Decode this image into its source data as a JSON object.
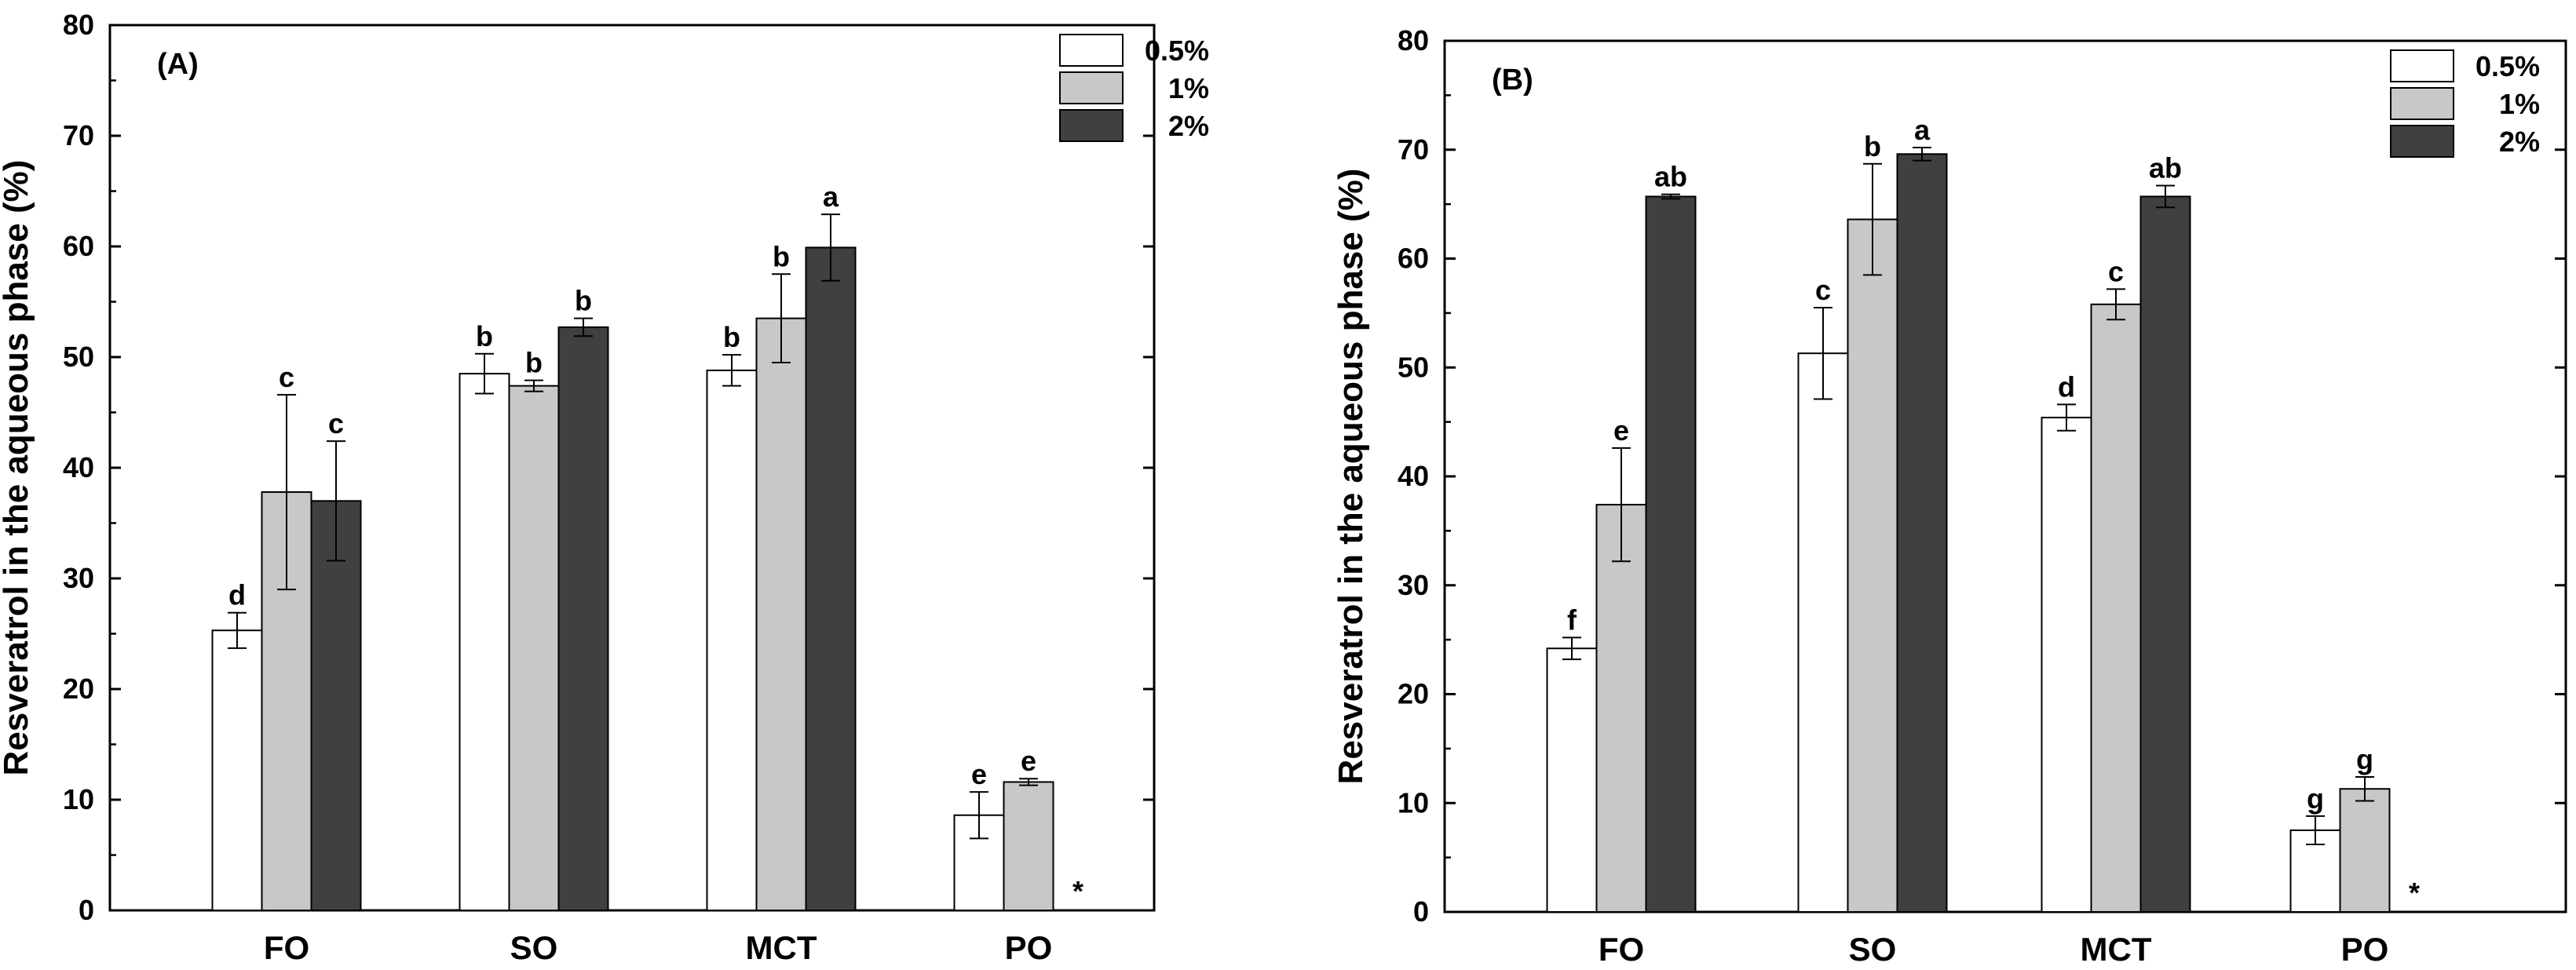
{
  "chart_data": [
    {
      "type": "bar",
      "panel_label": "(A)",
      "ylabel": "Resveratrol in the aqueous phase (%)",
      "xlabel": "",
      "ylim": [
        0,
        80
      ],
      "yticks": [
        "0",
        "10",
        "20",
        "30",
        "40",
        "50",
        "60",
        "70",
        "80"
      ],
      "categories": [
        "FO",
        "SO",
        "MCT",
        "PO"
      ],
      "legend_position": "top-right",
      "series": [
        {
          "name": "0.5%",
          "color": "#ffffff",
          "values": [
            25.3,
            48.5,
            48.8,
            8.6
          ],
          "errors": [
            1.6,
            1.8,
            1.4,
            2.1
          ],
          "letters": [
            "d",
            "b",
            "b",
            "e"
          ]
        },
        {
          "name": "1%",
          "color": "#c8c8c8",
          "values": [
            37.8,
            47.4,
            53.5,
            11.6
          ],
          "errors": [
            8.8,
            0.5,
            4.0,
            0.3
          ],
          "letters": [
            "c",
            "b",
            "b",
            "e"
          ]
        },
        {
          "name": "2%",
          "color": "#404040",
          "values": [
            37.0,
            52.7,
            59.9,
            null
          ],
          "errors": [
            5.4,
            0.8,
            3.0,
            null
          ],
          "letters": [
            "c",
            "b",
            "a",
            "*"
          ]
        }
      ]
    },
    {
      "type": "bar",
      "panel_label": "(B)",
      "ylabel": "Resveratrol in the aqueous phase (%)",
      "xlabel": "",
      "ylim": [
        0,
        80
      ],
      "yticks": [
        "0",
        "10",
        "20",
        "30",
        "40",
        "50",
        "60",
        "70",
        "80"
      ],
      "categories": [
        "FO",
        "SO",
        "MCT",
        "PO"
      ],
      "legend_position": "top-right",
      "series": [
        {
          "name": "0.5%",
          "color": "#ffffff",
          "values": [
            24.2,
            51.3,
            45.4,
            7.5
          ],
          "errors": [
            1.0,
            4.2,
            1.2,
            1.3
          ],
          "letters": [
            "f",
            "c",
            "d",
            "g"
          ]
        },
        {
          "name": "1%",
          "color": "#c8c8c8",
          "values": [
            37.4,
            63.6,
            55.8,
            11.3
          ],
          "errors": [
            5.2,
            5.1,
            1.4,
            1.1
          ],
          "letters": [
            "e",
            "b",
            "c",
            "g"
          ]
        },
        {
          "name": "2%",
          "color": "#404040",
          "values": [
            65.7,
            69.6,
            65.7,
            null
          ],
          "errors": [
            0.2,
            0.6,
            1.0,
            null
          ],
          "letters": [
            "ab",
            "a",
            "ab",
            "*"
          ]
        }
      ]
    }
  ]
}
